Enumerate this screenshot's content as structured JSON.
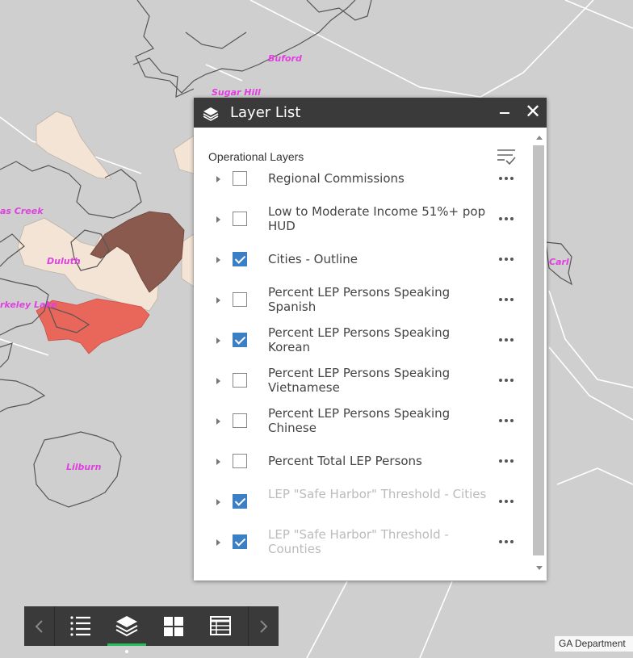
{
  "map": {
    "city_labels": [
      "Buford",
      "Sugar Hill",
      "as Creek",
      "Duluth",
      "rkeley Lake",
      "Lilburn",
      "Carl"
    ],
    "colors": {
      "background": "#cfcfcf",
      "boundary_line": "#ffffff",
      "outline": "#555555",
      "light_fill": "#f3e4d6",
      "dark_fill": "#8b5a4e",
      "red_fill": "#e9665a",
      "label": "#e040e0"
    }
  },
  "panel": {
    "title": "Layer List",
    "section_title": "Operational Layers",
    "icons": {
      "header": "layers-icon",
      "minimize": "minimize-icon",
      "close": "close-icon",
      "filter": "filter-list-icon",
      "row_menu": "more-horizontal-icon",
      "expand": "caret-right-icon"
    },
    "close_glyph": "✕",
    "layers": [
      {
        "name": "Regional Commissions",
        "checked": false,
        "faded": false
      },
      {
        "name": "Low to Moderate Income 51%+ pop HUD",
        "checked": false,
        "faded": false
      },
      {
        "name": "Cities - Outline",
        "checked": true,
        "faded": false
      },
      {
        "name": "Percent LEP Persons Speaking Spanish",
        "checked": false,
        "faded": false
      },
      {
        "name": "Percent LEP Persons Speaking Korean",
        "checked": true,
        "faded": false
      },
      {
        "name": "Percent LEP Persons Speaking Vietnamese",
        "checked": false,
        "faded": false
      },
      {
        "name": "Percent LEP Persons Speaking Chinese",
        "checked": false,
        "faded": false
      },
      {
        "name": "Percent Total LEP Persons",
        "checked": false,
        "faded": false
      },
      {
        "name": "LEP \"Safe Harbor\" Threshold - Cities",
        "checked": true,
        "faded": true
      },
      {
        "name": "LEP \"Safe Harbor\" Threshold - Counties",
        "checked": true,
        "faded": true
      }
    ]
  },
  "widget_bar": {
    "buttons": [
      {
        "name": "previous-button",
        "icon": "chevron-left-icon"
      },
      {
        "name": "legend-button",
        "icon": "list-icon"
      },
      {
        "name": "layer-list-button",
        "icon": "layers-icon",
        "active": true
      },
      {
        "name": "basemap-gallery-button",
        "icon": "grid-icon"
      },
      {
        "name": "attribute-table-button",
        "icon": "table-icon"
      },
      {
        "name": "next-button",
        "icon": "chevron-right-icon"
      }
    ],
    "accent": "#25c05a"
  },
  "attribution": "GA Department"
}
